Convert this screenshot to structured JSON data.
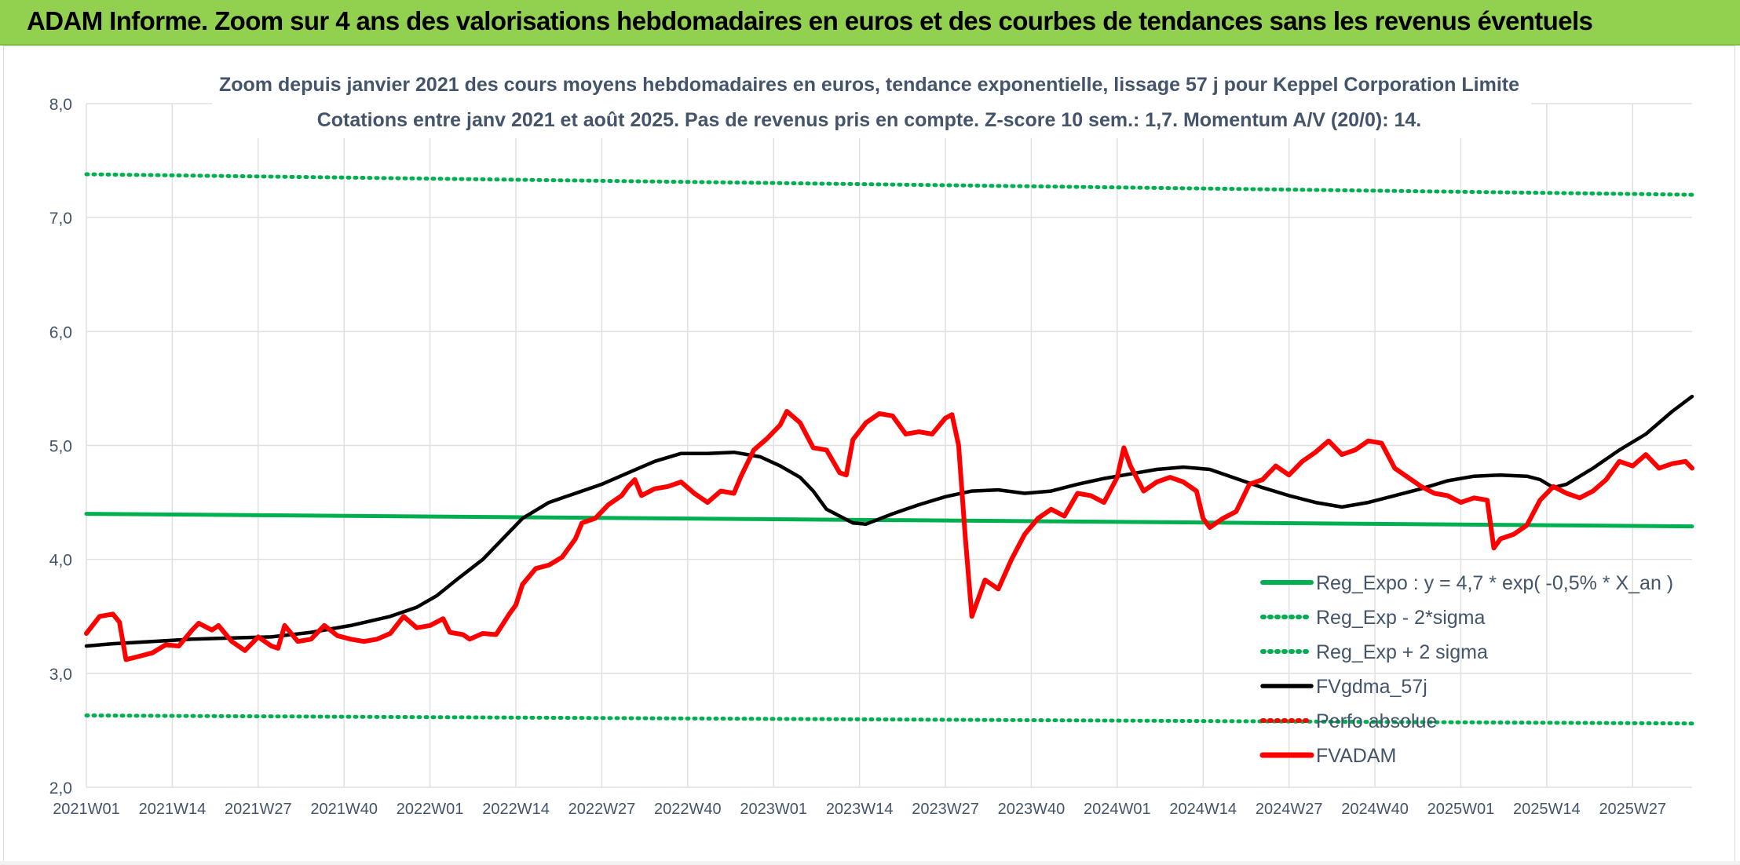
{
  "banner": {
    "title": "ADAM Informe. Zoom sur 4 ans des valorisations hebdomadaires en euros et des courbes de tendances sans les revenus éventuels"
  },
  "colors": {
    "banner_bg": "#92d050",
    "reg_expo": "#00b050",
    "reg_sigma": "#00b050",
    "fvgdma": "#000000",
    "perfo": "#ff0000",
    "fvadam": "#ff0000",
    "text": "#44546a",
    "grid": "#e0e0e0"
  },
  "chart_data": {
    "type": "line",
    "title": "Zoom depuis janvier 2021 des cours moyens hebdomadaires en euros, tendance exponentielle, lissage 57 j pour Keppel Corporation Limite",
    "subtitle": "Cotations entre janv 2021 et août 2025. Pas de revenus pris en compte. Z-score 10 sem.: 1,7. Momentum A/V (20/0): 14.",
    "ylim": [
      2.0,
      8.0
    ],
    "yticks": [
      "2,0",
      "3,0",
      "4,0",
      "5,0",
      "6,0",
      "7,0",
      "8,0"
    ],
    "xrange_weeks": [
      0,
      243
    ],
    "xticks": [
      {
        "label": "2021W01",
        "week": 0
      },
      {
        "label": "2021W14",
        "week": 13
      },
      {
        "label": "2021W27",
        "week": 26
      },
      {
        "label": "2021W40",
        "week": 39
      },
      {
        "label": "2022W01",
        "week": 52
      },
      {
        "label": "2022W14",
        "week": 65
      },
      {
        "label": "2022W27",
        "week": 78
      },
      {
        "label": "2022W40",
        "week": 91
      },
      {
        "label": "2023W01",
        "week": 104
      },
      {
        "label": "2023W14",
        "week": 117
      },
      {
        "label": "2023W27",
        "week": 130
      },
      {
        "label": "2023W40",
        "week": 143
      },
      {
        "label": "2024W01",
        "week": 156
      },
      {
        "label": "2024W14",
        "week": 169
      },
      {
        "label": "2024W27",
        "week": 182
      },
      {
        "label": "2024W40",
        "week": 195
      },
      {
        "label": "2025W01",
        "week": 208
      },
      {
        "label": "2025W14",
        "week": 221
      },
      {
        "label": "2025W27",
        "week": 234
      }
    ],
    "legend_position": "bottom-right",
    "grid": true,
    "series": [
      {
        "name": "Reg_Expo : y = 4,7 * exp( -0,5% *  X_an )",
        "style": "solid-thick",
        "color": "#00b050",
        "points": [
          [
            0,
            4.4
          ],
          [
            243,
            4.29
          ]
        ]
      },
      {
        "name": "Reg_Exp - 2*sigma",
        "style": "dotted",
        "color": "#00b050",
        "points": [
          [
            0,
            2.63
          ],
          [
            243,
            2.56
          ]
        ]
      },
      {
        "name": "Reg_Exp + 2 sigma",
        "style": "dotted",
        "color": "#00b050",
        "points": [
          [
            0,
            7.38
          ],
          [
            243,
            7.2
          ]
        ]
      },
      {
        "name": "FVgdma_57j",
        "style": "solid",
        "color": "#000000",
        "points": [
          [
            0,
            3.24
          ],
          [
            4,
            3.26
          ],
          [
            10,
            3.28
          ],
          [
            16,
            3.3
          ],
          [
            22,
            3.31
          ],
          [
            28,
            3.32
          ],
          [
            34,
            3.36
          ],
          [
            40,
            3.42
          ],
          [
            46,
            3.5
          ],
          [
            50,
            3.58
          ],
          [
            53,
            3.68
          ],
          [
            56,
            3.82
          ],
          [
            60,
            4.0
          ],
          [
            63,
            4.18
          ],
          [
            66,
            4.36
          ],
          [
            70,
            4.5
          ],
          [
            74,
            4.58
          ],
          [
            78,
            4.66
          ],
          [
            82,
            4.76
          ],
          [
            86,
            4.86
          ],
          [
            90,
            4.93
          ],
          [
            94,
            4.93
          ],
          [
            98,
            4.94
          ],
          [
            102,
            4.9
          ],
          [
            105,
            4.82
          ],
          [
            108,
            4.72
          ],
          [
            110,
            4.6
          ],
          [
            112,
            4.44
          ],
          [
            114,
            4.38
          ],
          [
            116,
            4.32
          ],
          [
            118,
            4.31
          ],
          [
            122,
            4.4
          ],
          [
            126,
            4.48
          ],
          [
            130,
            4.55
          ],
          [
            134,
            4.6
          ],
          [
            138,
            4.61
          ],
          [
            142,
            4.58
          ],
          [
            146,
            4.6
          ],
          [
            150,
            4.66
          ],
          [
            154,
            4.71
          ],
          [
            158,
            4.75
          ],
          [
            162,
            4.79
          ],
          [
            166,
            4.81
          ],
          [
            170,
            4.79
          ],
          [
            174,
            4.71
          ],
          [
            178,
            4.63
          ],
          [
            182,
            4.56
          ],
          [
            186,
            4.5
          ],
          [
            190,
            4.46
          ],
          [
            194,
            4.5
          ],
          [
            198,
            4.56
          ],
          [
            202,
            4.62
          ],
          [
            206,
            4.69
          ],
          [
            210,
            4.73
          ],
          [
            214,
            4.74
          ],
          [
            218,
            4.73
          ],
          [
            220,
            4.7
          ],
          [
            222,
            4.63
          ],
          [
            224,
            4.66
          ],
          [
            228,
            4.8
          ],
          [
            232,
            4.96
          ],
          [
            236,
            5.1
          ],
          [
            240,
            5.3
          ],
          [
            243,
            5.43
          ]
        ]
      },
      {
        "name": "Perfo absolue",
        "style": "dotted",
        "color": "#ff0000",
        "points": []
      },
      {
        "name": "FVADAM",
        "style": "solid-thick",
        "color": "#ff0000",
        "points": [
          [
            0,
            3.35
          ],
          [
            2,
            3.5
          ],
          [
            4,
            3.52
          ],
          [
            5,
            3.45
          ],
          [
            6,
            3.12
          ],
          [
            8,
            3.15
          ],
          [
            10,
            3.18
          ],
          [
            12,
            3.25
          ],
          [
            14,
            3.24
          ],
          [
            16,
            3.38
          ],
          [
            17,
            3.44
          ],
          [
            19,
            3.38
          ],
          [
            20,
            3.42
          ],
          [
            22,
            3.28
          ],
          [
            24,
            3.2
          ],
          [
            26,
            3.32
          ],
          [
            28,
            3.24
          ],
          [
            29,
            3.22
          ],
          [
            30,
            3.42
          ],
          [
            32,
            3.28
          ],
          [
            34,
            3.3
          ],
          [
            36,
            3.42
          ],
          [
            38,
            3.33
          ],
          [
            40,
            3.3
          ],
          [
            42,
            3.28
          ],
          [
            44,
            3.3
          ],
          [
            46,
            3.35
          ],
          [
            48,
            3.5
          ],
          [
            50,
            3.4
          ],
          [
            52,
            3.42
          ],
          [
            54,
            3.48
          ],
          [
            55,
            3.36
          ],
          [
            57,
            3.34
          ],
          [
            58,
            3.3
          ],
          [
            60,
            3.35
          ],
          [
            62,
            3.34
          ],
          [
            64,
            3.52
          ],
          [
            65,
            3.6
          ],
          [
            66,
            3.78
          ],
          [
            68,
            3.92
          ],
          [
            70,
            3.95
          ],
          [
            72,
            4.02
          ],
          [
            74,
            4.18
          ],
          [
            75,
            4.32
          ],
          [
            77,
            4.36
          ],
          [
            79,
            4.48
          ],
          [
            81,
            4.56
          ],
          [
            82,
            4.64
          ],
          [
            83,
            4.7
          ],
          [
            84,
            4.56
          ],
          [
            86,
            4.62
          ],
          [
            88,
            4.64
          ],
          [
            90,
            4.68
          ],
          [
            92,
            4.58
          ],
          [
            94,
            4.5
          ],
          [
            96,
            4.6
          ],
          [
            98,
            4.58
          ],
          [
            99,
            4.72
          ],
          [
            101,
            4.96
          ],
          [
            103,
            5.06
          ],
          [
            105,
            5.18
          ],
          [
            106,
            5.3
          ],
          [
            108,
            5.2
          ],
          [
            110,
            4.98
          ],
          [
            112,
            4.96
          ],
          [
            114,
            4.76
          ],
          [
            115,
            4.74
          ],
          [
            116,
            5.05
          ],
          [
            118,
            5.2
          ],
          [
            120,
            5.28
          ],
          [
            122,
            5.26
          ],
          [
            124,
            5.1
          ],
          [
            126,
            5.12
          ],
          [
            128,
            5.1
          ],
          [
            130,
            5.24
          ],
          [
            131,
            5.27
          ],
          [
            132,
            5.0
          ],
          [
            133,
            4.2
          ],
          [
            134,
            3.5
          ],
          [
            136,
            3.82
          ],
          [
            138,
            3.74
          ],
          [
            140,
            4.0
          ],
          [
            142,
            4.22
          ],
          [
            144,
            4.36
          ],
          [
            146,
            4.44
          ],
          [
            148,
            4.38
          ],
          [
            150,
            4.58
          ],
          [
            152,
            4.56
          ],
          [
            154,
            4.5
          ],
          [
            156,
            4.72
          ],
          [
            157,
            4.98
          ],
          [
            158,
            4.82
          ],
          [
            160,
            4.6
          ],
          [
            162,
            4.68
          ],
          [
            164,
            4.72
          ],
          [
            166,
            4.68
          ],
          [
            168,
            4.6
          ],
          [
            169,
            4.36
          ],
          [
            170,
            4.28
          ],
          [
            172,
            4.36
          ],
          [
            174,
            4.42
          ],
          [
            176,
            4.66
          ],
          [
            178,
            4.7
          ],
          [
            180,
            4.82
          ],
          [
            182,
            4.74
          ],
          [
            184,
            4.86
          ],
          [
            186,
            4.94
          ],
          [
            188,
            5.04
          ],
          [
            190,
            4.92
          ],
          [
            192,
            4.96
          ],
          [
            194,
            5.04
          ],
          [
            196,
            5.02
          ],
          [
            198,
            4.8
          ],
          [
            200,
            4.72
          ],
          [
            202,
            4.64
          ],
          [
            204,
            4.58
          ],
          [
            206,
            4.56
          ],
          [
            208,
            4.5
          ],
          [
            210,
            4.54
          ],
          [
            212,
            4.52
          ],
          [
            213,
            4.1
          ],
          [
            214,
            4.18
          ],
          [
            216,
            4.22
          ],
          [
            218,
            4.3
          ],
          [
            220,
            4.52
          ],
          [
            222,
            4.64
          ],
          [
            224,
            4.58
          ],
          [
            226,
            4.54
          ],
          [
            228,
            4.6
          ],
          [
            230,
            4.7
          ],
          [
            232,
            4.86
          ],
          [
            234,
            4.82
          ],
          [
            236,
            4.92
          ],
          [
            238,
            4.8
          ],
          [
            240,
            4.84
          ],
          [
            242,
            4.86
          ],
          [
            243,
            4.8
          ]
        ]
      }
    ]
  }
}
